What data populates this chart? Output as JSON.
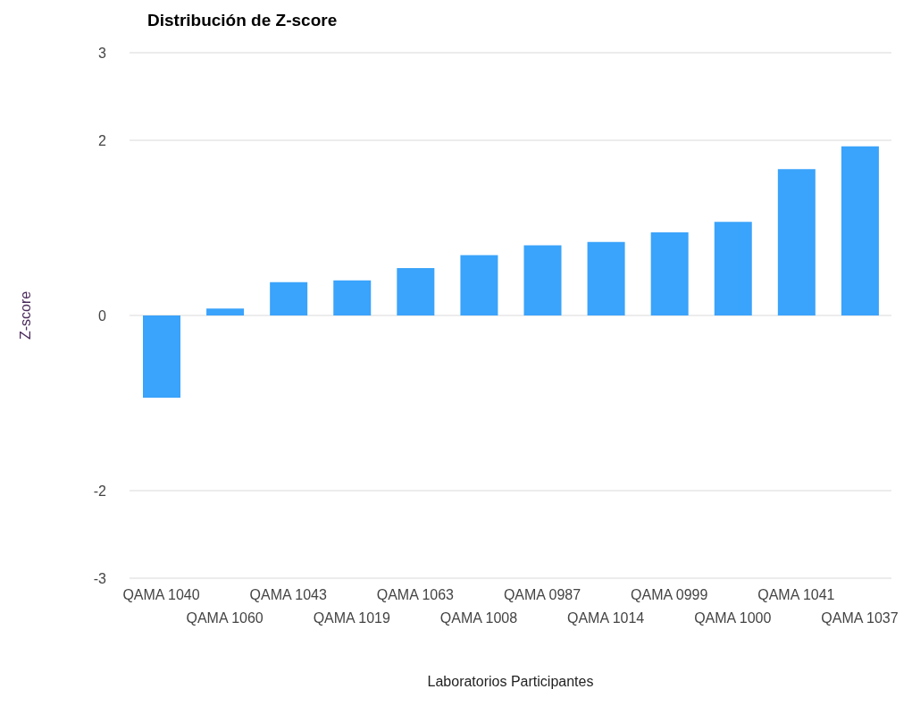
{
  "chart_data": {
    "type": "bar",
    "title": "Distribución de Z-score",
    "xlabel": "Laboratorios Participantes",
    "ylabel": "Z-score",
    "categories": [
      "QAMA 1040",
      "QAMA 1060",
      "QAMA 1043",
      "QAMA 1019",
      "QAMA 1063",
      "QAMA 1008",
      "QAMA 0987",
      "QAMA 1014",
      "QAMA 0999",
      "QAMA 1000",
      "QAMA 1041",
      "QAMA 1037"
    ],
    "values": [
      -0.94,
      0.08,
      0.38,
      0.4,
      0.54,
      0.69,
      0.8,
      0.84,
      0.95,
      1.07,
      1.67,
      1.93
    ],
    "color": "#3aa3fb",
    "ylim": [
      -3,
      3
    ],
    "yticks": [
      -3,
      -2,
      0,
      2,
      3
    ],
    "grid": "y",
    "legend": false
  }
}
